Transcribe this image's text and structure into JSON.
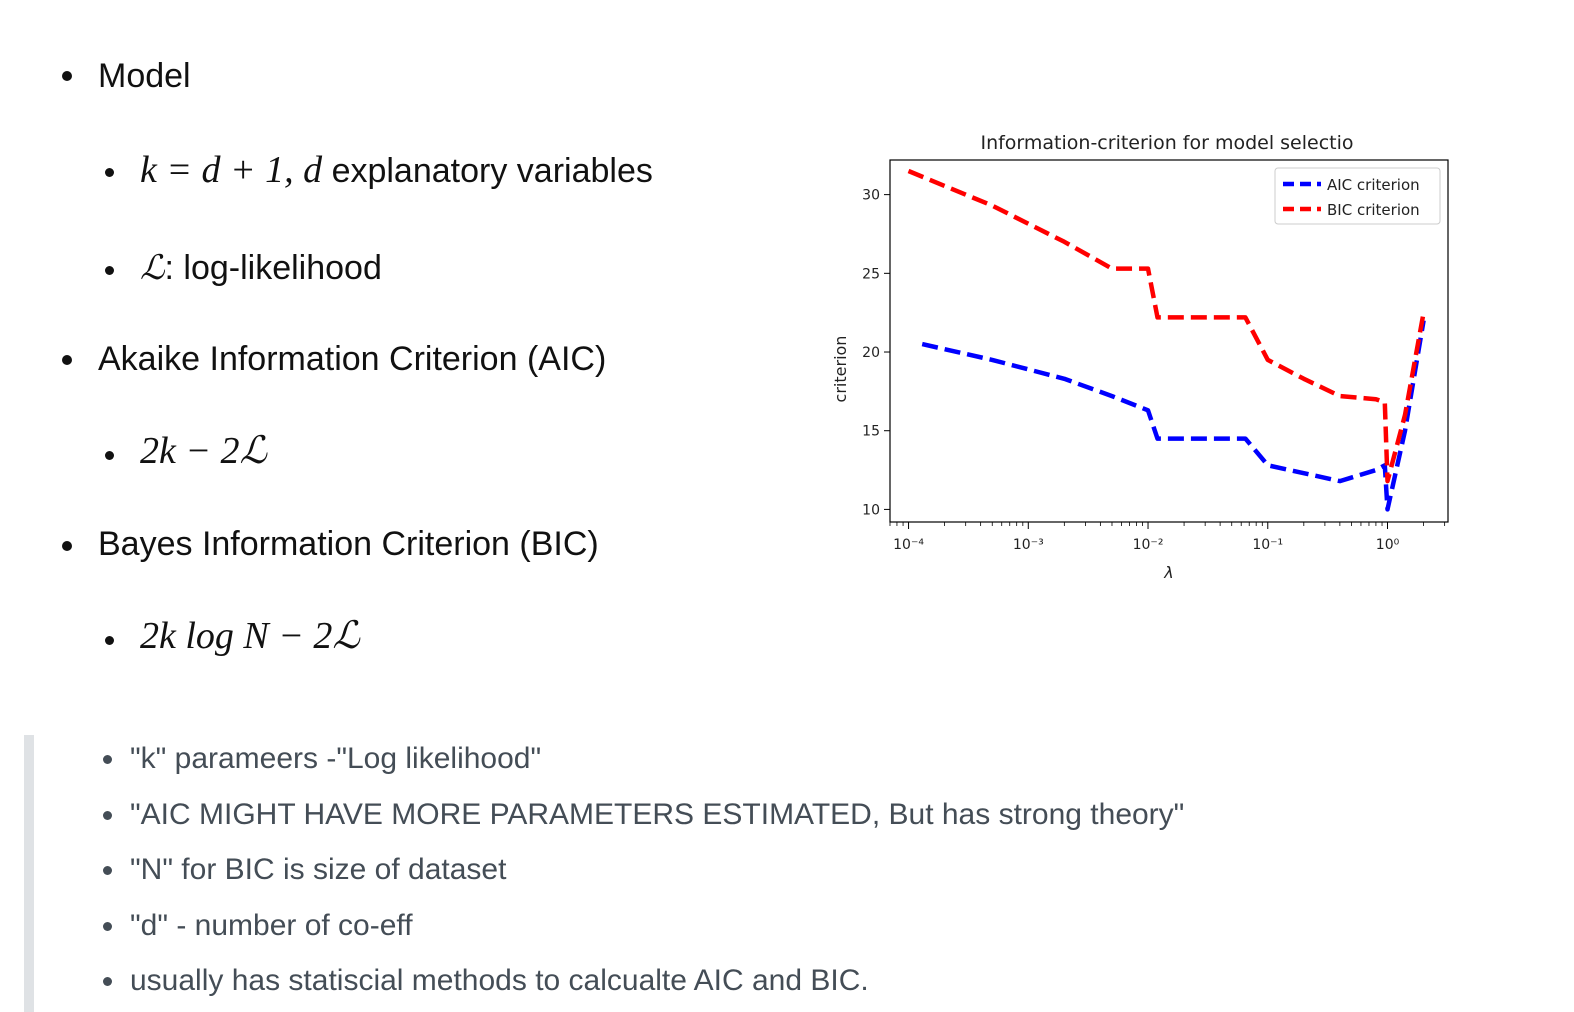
{
  "bullets": {
    "model": "Model",
    "k_desc": "explanatory variables",
    "loglik_desc": ": log-likelihood",
    "aic": "Akaike Information Criterion (AIC)",
    "bic": "Bayes Information Criterion (BIC)"
  },
  "formulas": {
    "k_eq": "k = d + 1,",
    "d_var": "d",
    "script_L": "ℒ",
    "aic_formula": "2k − 2ℒ",
    "bic_formula": "2k log N − 2ℒ"
  },
  "notes": [
    "\"k\" parameers -\"Log likelihood\"",
    "\"AIC MIGHT HAVE MORE PARAMETERS ESTIMATED, But has strong theory\"",
    "\"N\" for BIC is size of dataset",
    "\"d\" - number of co-eff",
    "usually has statiscial methods to calcualte AIC and BIC."
  ],
  "chart_data": {
    "type": "line",
    "title": "Information-criterion for model selectio",
    "xlabel": "λ",
    "ylabel": "criterion",
    "xscale": "log",
    "xlim": [
      7e-05,
      3.2
    ],
    "ylim": [
      9.2,
      32.2
    ],
    "xticks": [
      "10⁻⁴",
      "10⁻³",
      "10⁻²",
      "10⁻¹",
      "10⁰"
    ],
    "yticks": [
      10,
      15,
      20,
      25,
      30
    ],
    "legend_position": "top-right",
    "series": [
      {
        "name": "AIC criterion",
        "color": "#0000ff",
        "style": "dashed",
        "x": [
          0.00013,
          0.0005,
          0.002,
          0.005,
          0.01,
          0.012,
          0.03,
          0.065,
          0.1,
          0.2,
          0.4,
          0.8,
          0.95,
          1.0,
          1.4,
          2.0
        ],
        "y": [
          20.5,
          19.5,
          18.3,
          17.2,
          16.3,
          14.5,
          14.5,
          14.5,
          12.8,
          12.3,
          11.8,
          12.5,
          12.8,
          10.0,
          15.0,
          22.0
        ]
      },
      {
        "name": "BIC criterion",
        "color": "#ff0000",
        "style": "dashed",
        "x": [
          0.0001,
          0.0005,
          0.002,
          0.005,
          0.01,
          0.012,
          0.03,
          0.065,
          0.1,
          0.2,
          0.4,
          0.8,
          0.95,
          1.0,
          1.4,
          2.0
        ],
        "y": [
          31.5,
          29.3,
          27.0,
          25.3,
          25.3,
          22.2,
          22.2,
          22.2,
          19.5,
          18.3,
          17.2,
          17.0,
          16.8,
          11.8,
          16.0,
          22.5
        ]
      }
    ]
  }
}
